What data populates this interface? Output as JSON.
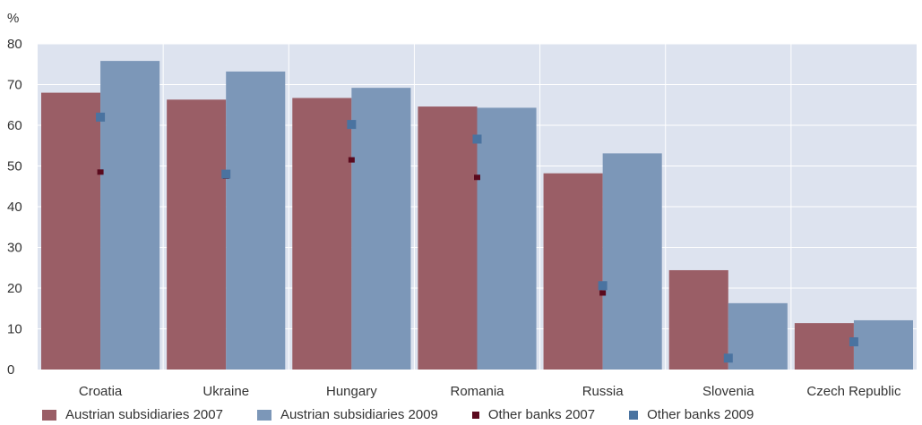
{
  "chart_data": {
    "type": "bar",
    "ylabel": "%",
    "ylim": [
      0,
      80
    ],
    "yticks": [
      0,
      10,
      20,
      30,
      40,
      50,
      60,
      70,
      80
    ],
    "grid": true,
    "legend_position": "bottom",
    "categories": [
      "Croatia",
      "Ukraine",
      "Hungary",
      "Romania",
      "Russia",
      "Slovenia",
      "Czech Republic"
    ],
    "series": [
      {
        "name": "Austrian subsidiaries 2007",
        "kind": "bar",
        "color": "#9a5e66",
        "values": [
          68,
          66.3,
          66.7,
          64.6,
          48.2,
          24.4,
          11.4
        ]
      },
      {
        "name": "Austrian subsidiaries 2009",
        "kind": "bar",
        "color": "#7c97b8",
        "values": [
          75.8,
          73.2,
          69.2,
          64.3,
          53.1,
          16.3,
          12.1
        ]
      },
      {
        "name": "Other banks 2007",
        "kind": "marker",
        "color": "#5a0a1e",
        "values": [
          48.5,
          47.5,
          51.5,
          47.2,
          18.8,
          3,
          7.2
        ]
      },
      {
        "name": "Other banks 2009",
        "kind": "marker",
        "color": "#4a73a0",
        "values": [
          62,
          48,
          60.2,
          56.6,
          20.6,
          2.8,
          6.8
        ]
      }
    ]
  },
  "colors": {
    "plot_background": "#dde3ef",
    "grid_line": "#ffffff"
  }
}
